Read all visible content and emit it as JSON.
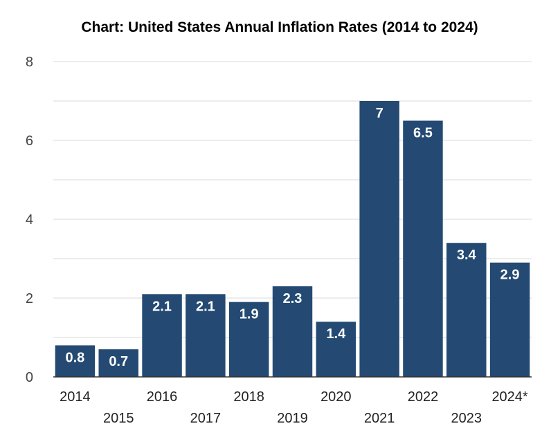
{
  "chart_data": {
    "type": "bar",
    "title": "Chart: United States Annual Inflation Rates (2014 to 2024)",
    "xlabel": "",
    "ylabel": "",
    "categories": [
      "2014",
      "2015",
      "2016",
      "2017",
      "2018",
      "2019",
      "2020",
      "2021",
      "2022",
      "2023",
      "2024*"
    ],
    "values": [
      0.8,
      0.7,
      2.1,
      2.1,
      1.9,
      2.3,
      1.4,
      7,
      6.5,
      3.4,
      2.9
    ],
    "data_labels": [
      "0.8",
      "0.7",
      "2.1",
      "2.1",
      "1.9",
      "2.3",
      "1.4",
      "7",
      "6.5",
      "3.4",
      "2.9"
    ],
    "ylim": [
      0,
      8
    ],
    "yticks": [
      0,
      2,
      4,
      6,
      8
    ],
    "grid": true,
    "bar_color": "#244a73",
    "grid_color": "#d9d9d9",
    "axis_color": "#333333"
  }
}
